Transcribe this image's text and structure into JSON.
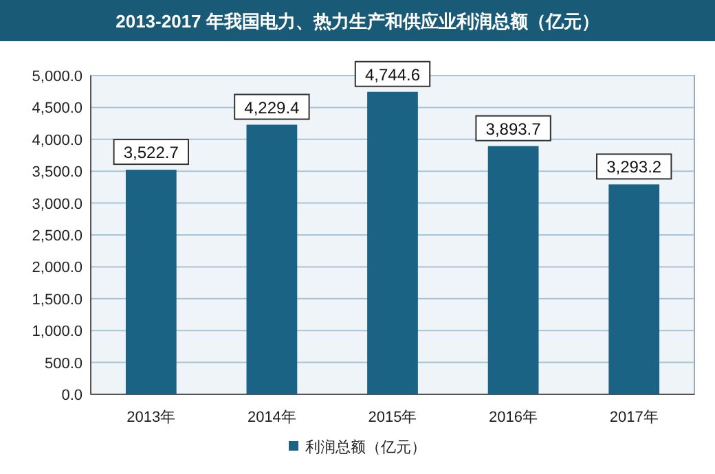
{
  "chart_data": {
    "type": "bar",
    "title": "2013-2017 年我国电力、热力生产和供应业利润总额（亿元）",
    "categories": [
      "2013年",
      "2014年",
      "2015年",
      "2016年",
      "2017年"
    ],
    "series": [
      {
        "name": "利润总额（亿元）",
        "color": "#1b6385",
        "values": [
          3522.7,
          4229.4,
          4744.6,
          3893.7,
          3293.2
        ]
      }
    ],
    "value_labels": [
      "3,522.7",
      "4,229.4",
      "4,744.6",
      "3,893.7",
      "3,293.2"
    ],
    "ylim": [
      0,
      5000
    ],
    "yticks": [
      {
        "value": 0,
        "label": "0.0"
      },
      {
        "value": 500,
        "label": "500.0"
      },
      {
        "value": 1000,
        "label": "1,000.0"
      },
      {
        "value": 1500,
        "label": "1,500.0"
      },
      {
        "value": 2000,
        "label": "2,000.0"
      },
      {
        "value": 2500,
        "label": "2,500.0"
      },
      {
        "value": 3000,
        "label": "3,000.0"
      },
      {
        "value": 3500,
        "label": "3,500.0"
      },
      {
        "value": 4000,
        "label": "4,000.0"
      },
      {
        "value": 4500,
        "label": "4,500.0"
      },
      {
        "value": 5000,
        "label": "5,000.0"
      }
    ],
    "grid": "y",
    "legend": "bottom"
  }
}
